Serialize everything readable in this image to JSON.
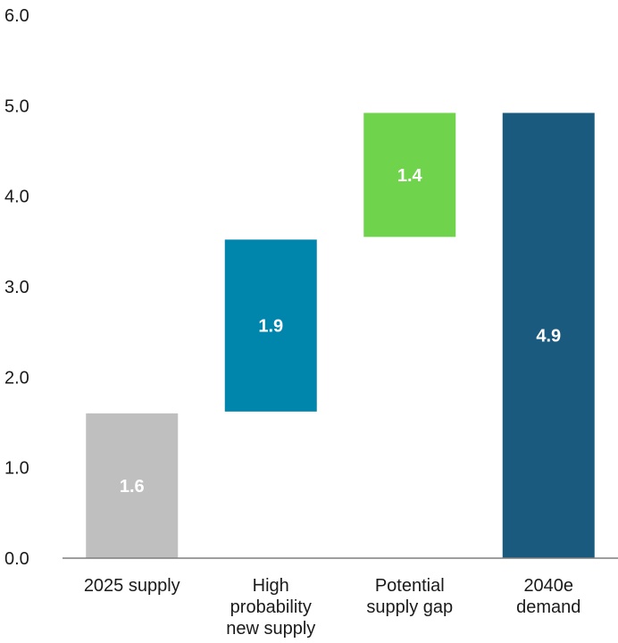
{
  "chart_data": {
    "type": "bar",
    "subtype": "waterfall",
    "title": "",
    "xlabel": "",
    "ylabel": "",
    "ylim": [
      0,
      6
    ],
    "yticks": [
      "0.0",
      "1.0",
      "2.0",
      "3.0",
      "4.0",
      "5.0",
      "6.0"
    ],
    "grid": false,
    "legend": "none",
    "categories": [
      [
        "2025 supply"
      ],
      [
        "High",
        "probability",
        "new supply"
      ],
      [
        "Potential",
        "supply gap"
      ],
      [
        "2040e",
        "demand"
      ]
    ],
    "bars": [
      {
        "base": 0.0,
        "top": 1.6,
        "value": 1.6,
        "label": "1.6",
        "color": "#bfbfbf"
      },
      {
        "base": 1.62,
        "top": 3.52,
        "value": 1.9,
        "label": "1.9",
        "color": "#0085ad"
      },
      {
        "base": 3.55,
        "top": 4.92,
        "value": 1.4,
        "label": "1.4",
        "color": "#6fd44c"
      },
      {
        "base": 0.0,
        "top": 4.92,
        "value": 4.9,
        "label": "4.9",
        "color": "#1a5a7e"
      }
    ],
    "axis_color": "#7f7f7f"
  }
}
